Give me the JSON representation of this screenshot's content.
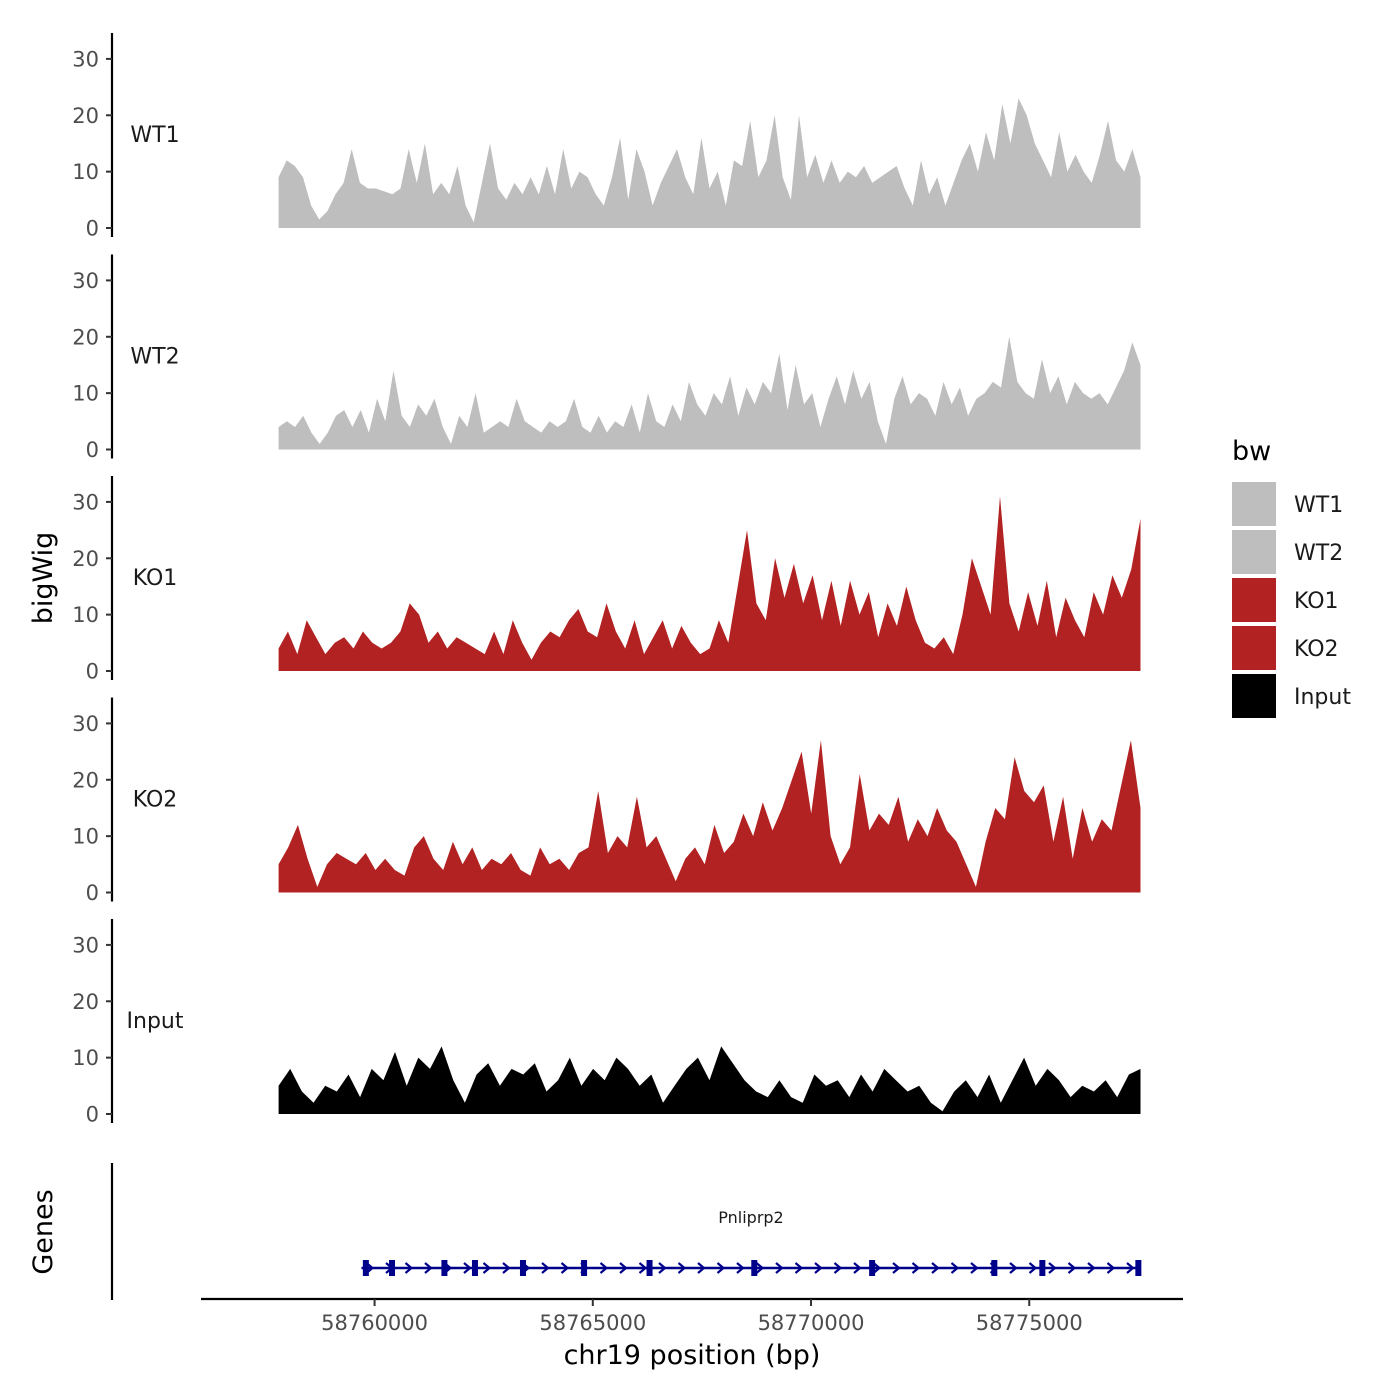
{
  "chart_data": {
    "type": "area",
    "chromosome_axis_label": "chr19 position (bp)",
    "y_axis_label": "bigWig",
    "genes_panel_label": "Genes",
    "xlim": [
      58756000,
      58778500
    ],
    "data_range": [
      58757800,
      58777550
    ],
    "ylim": [
      0,
      33
    ],
    "y_ticks": [
      0,
      10,
      20,
      30
    ],
    "x_ticks": [
      58760000,
      58765000,
      58770000,
      58775000
    ],
    "legend": {
      "title": "bw",
      "entries": [
        {
          "label": "WT1",
          "color": "#bebebe"
        },
        {
          "label": "WT2",
          "color": "#bebebe"
        },
        {
          "label": "KO1",
          "color": "#b22222"
        },
        {
          "label": "KO2",
          "color": "#b22222"
        },
        {
          "label": "Input",
          "color": "#000000"
        }
      ]
    },
    "series": [
      {
        "name": "WT1",
        "color": "#bebebe",
        "values": [
          9,
          12,
          11,
          9,
          4,
          1.5,
          3,
          6,
          8,
          14,
          8,
          7,
          7,
          6.5,
          6,
          7,
          14,
          8,
          15,
          6,
          8,
          6,
          11,
          4,
          1,
          8,
          15,
          7,
          5,
          8,
          6,
          9,
          6,
          11,
          6,
          14,
          7,
          10,
          9,
          6,
          4,
          9,
          16,
          5,
          14,
          10,
          4,
          8,
          11,
          14,
          9,
          6,
          16,
          7,
          10,
          4,
          12,
          11,
          19,
          9,
          12,
          20,
          9,
          5,
          20,
          9,
          13,
          8,
          12,
          8,
          10,
          9,
          11,
          8,
          9,
          10,
          11,
          7,
          4,
          12,
          6,
          9,
          4,
          8,
          12,
          15,
          10,
          17,
          12,
          22,
          15,
          23,
          20,
          15,
          12,
          9,
          17,
          10,
          13,
          10,
          8,
          13,
          19,
          12,
          10,
          14,
          9
        ]
      },
      {
        "name": "WT2",
        "color": "#bebebe",
        "values": [
          4,
          5,
          4,
          6,
          3,
          1,
          3,
          6,
          7,
          4,
          7,
          3,
          9,
          5,
          14,
          6,
          4,
          8,
          6,
          9,
          4,
          1,
          6,
          4,
          10,
          3,
          4,
          5,
          4,
          9,
          5,
          4,
          3,
          5,
          4,
          5,
          9,
          4,
          3,
          6,
          3,
          5,
          4,
          8,
          3,
          10,
          5,
          4,
          8,
          5,
          12,
          8,
          6,
          10,
          8,
          13,
          6,
          11,
          8,
          12,
          10,
          17,
          7,
          15,
          8,
          10,
          4,
          9,
          13,
          8,
          14,
          9,
          12,
          5,
          1,
          9,
          13,
          8,
          10,
          9,
          6,
          12,
          8,
          11,
          6,
          9,
          10,
          12,
          11,
          20,
          12,
          10,
          9,
          16,
          10,
          13,
          8,
          12,
          10,
          9,
          10,
          8,
          11,
          14,
          19,
          15
        ]
      },
      {
        "name": "KO1",
        "color": "#b22222",
        "values": [
          4,
          7,
          3,
          9,
          6,
          3,
          5,
          6,
          4,
          7,
          5,
          4,
          5,
          7,
          12,
          10,
          5,
          7,
          4,
          6,
          5,
          4,
          3,
          7,
          3,
          9,
          5,
          2,
          5,
          7,
          6,
          9,
          11,
          7,
          6,
          12,
          7,
          4,
          9,
          3,
          6,
          9,
          4,
          8,
          5,
          3,
          4,
          9,
          5,
          15,
          25,
          12,
          9,
          20,
          13,
          19,
          12,
          17,
          9,
          16,
          8,
          16,
          10,
          14,
          6,
          12,
          8,
          15,
          9,
          5,
          4,
          6,
          3,
          10,
          20,
          15,
          10,
          31,
          12,
          7,
          14,
          8,
          16,
          6,
          13,
          9,
          6,
          14,
          10,
          17,
          13,
          18,
          27
        ]
      },
      {
        "name": "KO2",
        "color": "#b22222",
        "values": [
          5,
          8,
          12,
          6,
          1,
          5,
          7,
          6,
          5,
          7,
          4,
          6,
          4,
          3,
          8,
          10,
          6,
          4,
          9,
          5,
          8,
          4,
          6,
          5,
          7,
          4,
          3,
          8,
          5,
          6,
          4,
          7,
          8,
          18,
          7,
          10,
          8,
          17,
          8,
          10,
          6,
          2,
          6,
          8,
          5,
          12,
          7,
          9,
          14,
          10,
          16,
          11,
          15,
          20,
          25,
          14,
          27,
          10,
          5,
          8,
          21,
          11,
          14,
          12,
          17,
          9,
          13,
          10,
          15,
          11,
          9,
          5,
          1,
          9,
          15,
          13,
          24,
          18,
          16,
          19,
          9,
          17,
          6,
          15,
          9,
          13,
          11,
          19,
          27,
          15
        ]
      },
      {
        "name": "Input",
        "color": "#000000",
        "values": [
          5,
          8,
          4,
          2,
          5,
          4,
          7,
          3,
          8,
          6,
          11,
          5,
          10,
          8,
          12,
          6,
          2,
          7,
          9,
          5,
          8,
          7,
          9,
          4,
          6,
          10,
          5,
          8,
          6,
          10,
          8,
          5,
          7,
          2,
          5,
          8,
          10,
          6,
          12,
          9,
          6,
          4,
          3,
          6,
          3,
          2,
          7,
          5,
          6,
          3,
          7,
          4,
          8,
          6,
          4,
          5,
          2,
          0.5,
          4,
          6,
          3,
          7,
          2,
          6,
          10,
          5,
          8,
          6,
          3,
          5,
          4,
          6,
          3,
          7,
          8
        ]
      }
    ],
    "genes": [
      {
        "name": "Pnliprp2",
        "start": 58759700,
        "end": 58777550,
        "strand": "+",
        "exon_positions": [
          58759800,
          58760400,
          58761600,
          58762300,
          58763400,
          58764800,
          58766300,
          58768700,
          58771400,
          58774200,
          58775300,
          58777500
        ]
      }
    ]
  }
}
